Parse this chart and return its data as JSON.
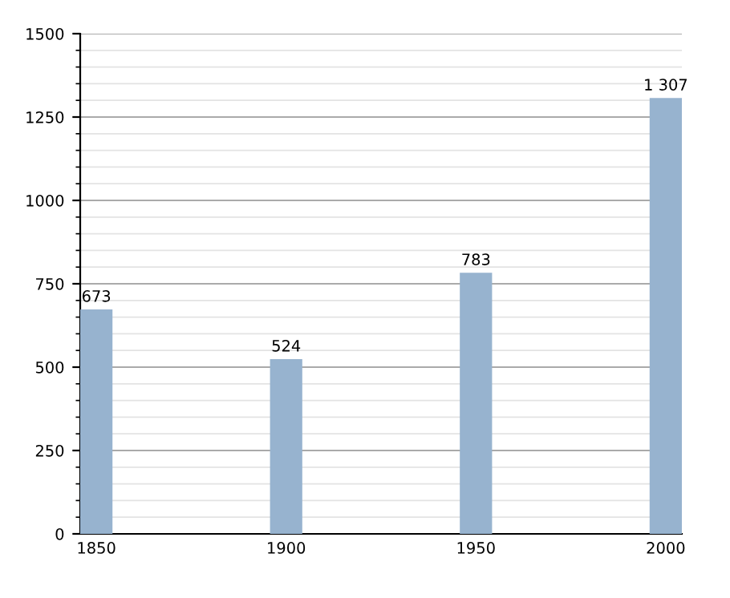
{
  "chart_data": {
    "type": "bar",
    "categories": [
      "1850",
      "1900",
      "1950",
      "2000"
    ],
    "values": [
      673,
      524,
      783,
      1307
    ],
    "value_labels": [
      "673",
      "524",
      "783",
      "1 307"
    ],
    "color": "#97b3cf",
    "ylim": [
      0,
      1500
    ],
    "yticks": [
      0,
      250,
      500,
      750,
      1000,
      1250,
      1500
    ],
    "grid": "y"
  }
}
